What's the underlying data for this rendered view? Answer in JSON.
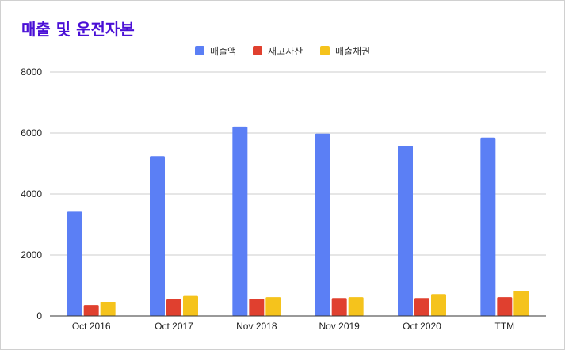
{
  "chart_data": {
    "type": "bar",
    "title": "매출 및 운전자본",
    "categories": [
      "Oct 2016",
      "Oct 2017",
      "Nov 2018",
      "Nov 2019",
      "Oct 2020",
      "TTM"
    ],
    "series": [
      {
        "name": "매출액",
        "color": "#5b7ff5",
        "values": [
          3420,
          5240,
          6210,
          5980,
          5580,
          5850
        ]
      },
      {
        "name": "재고자산",
        "color": "#e0402f",
        "values": [
          360,
          550,
          570,
          590,
          590,
          620
        ]
      },
      {
        "name": "매출채권",
        "color": "#f5c31c",
        "values": [
          460,
          660,
          620,
          620,
          720,
          830
        ]
      }
    ],
    "ylim": [
      0,
      8000
    ],
    "yticks": [
      0,
      2000,
      4000,
      6000,
      8000
    ],
    "grid": true,
    "legend": "top-center"
  }
}
